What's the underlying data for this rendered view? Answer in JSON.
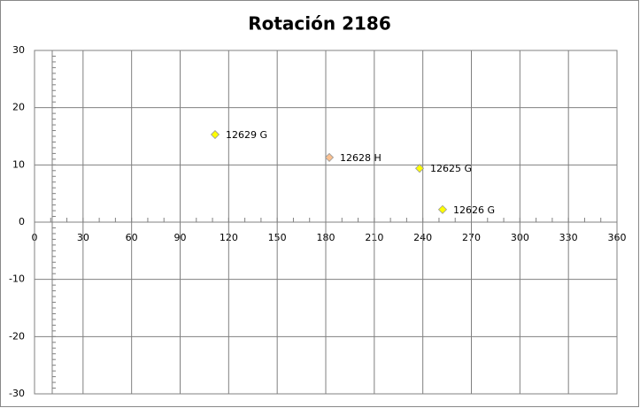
{
  "chart_data": {
    "type": "scatter",
    "title": "Rotación 2186",
    "series": [
      {
        "name": "12629 G",
        "color": "#ffff00",
        "x": [
          111.6
        ],
        "values": [
          15.3
        ]
      },
      {
        "name": "12628 H",
        "color": "#fac090",
        "x": [
          182.2
        ],
        "values": [
          11.3
        ]
      },
      {
        "name": "12625 G",
        "color": "#ffff00",
        "x": [
          238
        ],
        "values": [
          9.4
        ]
      },
      {
        "name": "12626 G",
        "color": "#ffff00",
        "x": [
          252.2
        ],
        "values": [
          2.2
        ]
      }
    ],
    "xlim": [
      0,
      360
    ],
    "xticks": [
      0,
      30,
      60,
      90,
      120,
      150,
      180,
      210,
      240,
      270,
      300,
      330,
      360
    ],
    "ylim": [
      -30,
      30
    ],
    "yticks": [
      -30,
      -20,
      -10,
      0,
      10,
      20,
      30
    ],
    "grid": true
  }
}
